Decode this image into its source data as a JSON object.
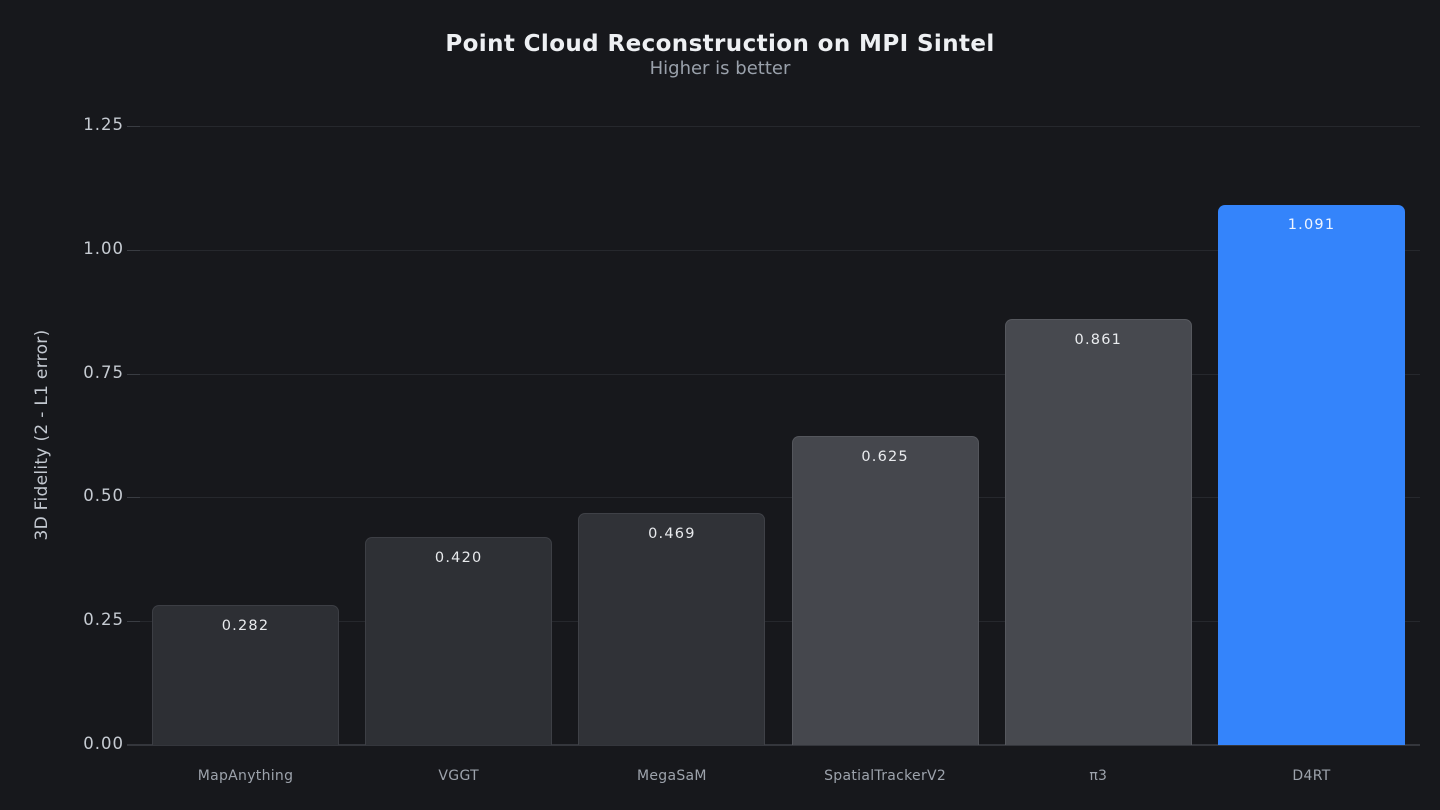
{
  "chart_data": {
    "type": "bar",
    "title": "Point Cloud Reconstruction on MPI Sintel",
    "subtitle": "Higher is better",
    "xlabel": "",
    "ylabel": "3D Fidelity (2 - L1 error)",
    "categories": [
      "MapAnything",
      "VGGT",
      "MegaSaM",
      "SpatialTrackerV2",
      "π3",
      "D4RT"
    ],
    "values": [
      0.282,
      0.42,
      0.469,
      0.625,
      0.861,
      1.091
    ],
    "value_labels": [
      "0.282",
      "0.420",
      "0.469",
      "0.625",
      "0.861",
      "1.091"
    ],
    "highlight_index": 5,
    "highlight_category": "D4RT",
    "yticks": [
      "0.00",
      "0.25",
      "0.50",
      "0.75",
      "1.00",
      "1.25"
    ],
    "ylim": [
      0,
      1.25
    ],
    "grid": true,
    "legend": null,
    "bar_colors": [
      "#2d2f34",
      "#2e3035",
      "#303237",
      "#45474d",
      "#47494f",
      "#3484fb"
    ],
    "bar_border_colors": [
      "#3c3e44",
      "#3d3f45",
      "#3f4147",
      "#54565c",
      "#56585e",
      "transparent"
    ],
    "value_label_colors": [
      "#e8eaed",
      "#e8eaed",
      "#e8eaed",
      "#eaecef",
      "#eaecef",
      "#f0f5ff"
    ]
  },
  "colors": {
    "background": "#17181c",
    "gridline": "#26282d",
    "tick_stub": "#3a3d43",
    "baseline": "#34363c",
    "y_tick_label": "#c6cbd2",
    "axis_title": "#c3c8d0",
    "x_label": "#9da3ac",
    "title": "#eef0f3",
    "subtitle": "#9aa1ab",
    "accent": "#3484fb"
  }
}
